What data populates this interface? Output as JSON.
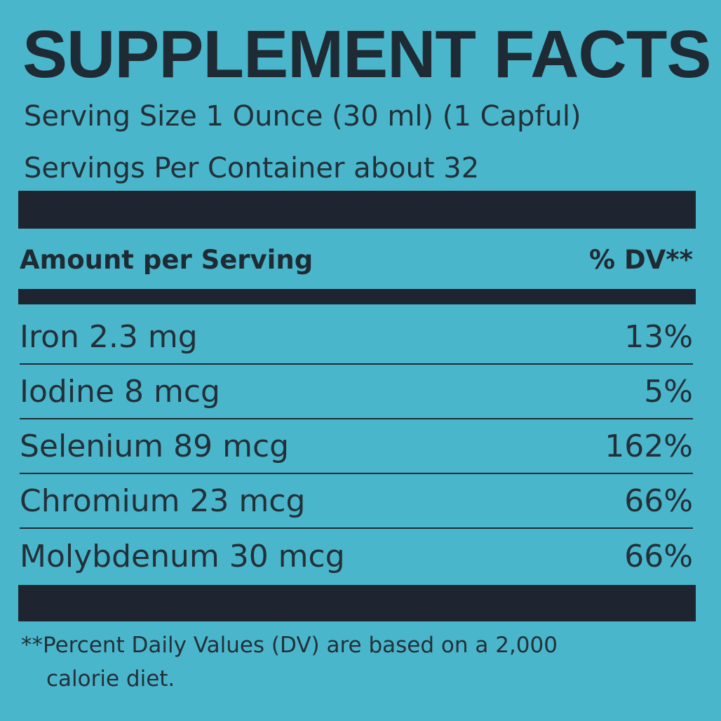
{
  "label": {
    "title": "SUPPLEMENT FACTS",
    "serving_size": "Serving Size 1 Ounce (30 ml) (1 Capful)",
    "servings_per_container": "Servings Per Container about 32",
    "amount_header": "Amount per Serving",
    "dv_header": "% DV**",
    "nutrients": [
      {
        "name": "Iron 2.3 mg",
        "dv": "13%"
      },
      {
        "name": "Iodine 8 mcg",
        "dv": "5%"
      },
      {
        "name": "Selenium 89 mcg",
        "dv": "162%"
      },
      {
        "name": "Chromium 23 mcg",
        "dv": "66%"
      },
      {
        "name": "Molybdenum 30 mcg",
        "dv": "66%"
      }
    ],
    "footnote_line1": "**Percent Daily Values (DV) are based on a  2,000",
    "footnote_line2": "calorie diet."
  },
  "colors": {
    "background": "#4ab6cb",
    "ink": "#1f2b34",
    "bar": "#1f2530"
  }
}
